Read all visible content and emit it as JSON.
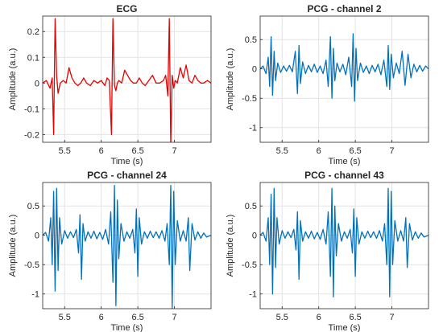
{
  "chart_data": [
    {
      "type": "line",
      "title": "ECG",
      "xlabel": "Time (s)",
      "ylabel": "Amplitude (a.u.)",
      "xlim": [
        5.2,
        7.5
      ],
      "ylim": [
        -0.23,
        0.26
      ],
      "xticks": [
        "5.5",
        "6",
        "6.5",
        "7"
      ],
      "xtick_values": [
        5.5,
        6,
        6.5,
        7
      ],
      "yticks": [
        "-0.2",
        "-0.1",
        "0",
        "0.1",
        "0.2"
      ],
      "ytick_values": [
        -0.2,
        -0.1,
        0,
        0.1,
        0.2
      ],
      "grid": true,
      "color": "#e60000",
      "series": [
        {
          "x": [
            5.2,
            5.25,
            5.3,
            5.33,
            5.35,
            5.37,
            5.39,
            5.41,
            5.44,
            5.48,
            5.52,
            5.56,
            5.6,
            5.64,
            5.68,
            5.72,
            5.76,
            5.8,
            5.85,
            5.9,
            5.95,
            6.0,
            6.05,
            6.08,
            6.11,
            6.14,
            6.16,
            6.18,
            6.2,
            6.22,
            6.24,
            6.28,
            6.32,
            6.36,
            6.4,
            6.44,
            6.48,
            6.52,
            6.56,
            6.6,
            6.65,
            6.7,
            6.75,
            6.8,
            6.85,
            6.88,
            6.91,
            6.93,
            6.95,
            6.97,
            6.99,
            7.01,
            7.04,
            7.08,
            7.12,
            7.16,
            7.2,
            7.24,
            7.28,
            7.32,
            7.36,
            7.4,
            7.45,
            7.5
          ],
          "y": [
            0.0,
            0.01,
            -0.02,
            0.02,
            -0.2,
            0.25,
            0.03,
            -0.04,
            0.0,
            0.01,
            0.0,
            0.06,
            0.02,
            0.0,
            -0.01,
            0.0,
            0.02,
            0.0,
            -0.01,
            0.01,
            0.0,
            0.01,
            -0.01,
            0.02,
            0.01,
            -0.2,
            0.25,
            -0.01,
            -0.03,
            0.0,
            0.01,
            0.0,
            0.05,
            0.03,
            0.01,
            0.0,
            0.0,
            0.02,
            0.0,
            -0.01,
            0.01,
            0.03,
            0.0,
            0.0,
            0.01,
            0.03,
            -0.05,
            0.25,
            -0.24,
            0.03,
            -0.02,
            0.01,
            0.0,
            0.06,
            0.02,
            0.07,
            0.01,
            0.0,
            0.03,
            0.01,
            0.0,
            0.0,
            0.01,
            0.0
          ]
        }
      ]
    },
    {
      "type": "line",
      "title": "PCG - channel 2",
      "xlabel": "Time (s)",
      "ylabel": "Amplitude (a.u.)",
      "xlim": [
        5.2,
        7.5
      ],
      "ylim": [
        -1.25,
        0.9
      ],
      "xticks": [
        "5.5",
        "6",
        "6.5",
        "7"
      ],
      "xtick_values": [
        5.5,
        6,
        6.5,
        7
      ],
      "yticks": [
        "-1",
        "-0.5",
        "0",
        "0.5"
      ],
      "ytick_values": [
        -1,
        -0.5,
        0,
        0.5
      ],
      "grid": true,
      "color": "#0072bd",
      "series": [
        {
          "x": [
            5.2,
            5.24,
            5.28,
            5.31,
            5.33,
            5.35,
            5.37,
            5.39,
            5.41,
            5.44,
            5.48,
            5.52,
            5.56,
            5.6,
            5.64,
            5.68,
            5.71,
            5.73,
            5.75,
            5.78,
            5.82,
            5.86,
            5.9,
            5.94,
            5.98,
            6.02,
            6.06,
            6.1,
            6.13,
            6.16,
            6.18,
            6.2,
            6.22,
            6.25,
            6.29,
            6.33,
            6.37,
            6.41,
            6.45,
            6.47,
            6.49,
            6.51,
            6.53,
            6.57,
            6.61,
            6.65,
            6.69,
            6.73,
            6.77,
            6.81,
            6.85,
            6.89,
            6.93,
            6.95,
            6.97,
            6.99,
            7.02,
            7.06,
            7.1,
            7.14,
            7.18,
            7.22,
            7.26,
            7.3,
            7.34,
            7.38,
            7.42,
            7.46,
            7.5
          ],
          "y": [
            0.0,
            0.05,
            -0.08,
            0.2,
            -0.3,
            0.55,
            -0.45,
            0.3,
            -0.2,
            0.1,
            -0.06,
            0.05,
            -0.04,
            0.06,
            -0.05,
            0.3,
            -0.42,
            0.4,
            -0.25,
            0.12,
            -0.08,
            0.06,
            -0.05,
            0.08,
            -0.06,
            0.05,
            -0.08,
            0.15,
            -0.3,
            0.55,
            -0.5,
            0.35,
            -0.2,
            0.1,
            -0.05,
            0.08,
            -0.1,
            0.2,
            -0.3,
            0.6,
            -0.55,
            0.35,
            -0.2,
            0.1,
            -0.06,
            0.05,
            -0.08,
            0.06,
            -0.05,
            0.08,
            -0.1,
            0.15,
            -0.3,
            0.4,
            -0.35,
            0.25,
            -0.15,
            0.1,
            -0.08,
            0.3,
            -0.28,
            0.25,
            -0.15,
            0.08,
            -0.05,
            0.06,
            -0.04,
            0.05,
            0.0
          ]
        }
      ]
    },
    {
      "type": "line",
      "title": "PCG - channel 24",
      "xlabel": "Time (s)",
      "ylabel": "Amplitude (a.u.)",
      "xlim": [
        5.2,
        7.5
      ],
      "ylim": [
        -1.25,
        0.9
      ],
      "xticks": [
        "5.5",
        "6",
        "6.5",
        "7"
      ],
      "xtick_values": [
        5.5,
        6,
        6.5,
        7
      ],
      "yticks": [
        "-1",
        "-0.5",
        "0",
        "0.5"
      ],
      "ytick_values": [
        -1,
        -0.5,
        0,
        0.5
      ],
      "grid": true,
      "color": "#0072bd",
      "series": [
        {
          "x": [
            5.2,
            5.24,
            5.28,
            5.31,
            5.33,
            5.35,
            5.37,
            5.39,
            5.41,
            5.43,
            5.46,
            5.5,
            5.54,
            5.58,
            5.62,
            5.66,
            5.69,
            5.71,
            5.73,
            5.75,
            5.78,
            5.82,
            5.86,
            5.9,
            5.94,
            5.98,
            6.02,
            6.06,
            6.1,
            6.13,
            6.16,
            6.18,
            6.2,
            6.22,
            6.24,
            6.27,
            6.31,
            6.35,
            6.39,
            6.43,
            6.46,
            6.48,
            6.5,
            6.52,
            6.55,
            6.59,
            6.63,
            6.67,
            6.71,
            6.75,
            6.79,
            6.83,
            6.87,
            6.9,
            6.93,
            6.95,
            6.97,
            6.99,
            7.01,
            7.04,
            7.08,
            7.12,
            7.16,
            7.19,
            7.21,
            7.24,
            7.28,
            7.32,
            7.36,
            7.4,
            7.44,
            7.5
          ],
          "y": [
            0.0,
            0.05,
            -0.1,
            0.3,
            -0.5,
            0.75,
            -0.95,
            0.8,
            -0.6,
            0.3,
            -0.15,
            0.08,
            -0.05,
            0.06,
            -0.04,
            0.1,
            -0.3,
            0.35,
            -0.75,
            0.2,
            -0.1,
            0.06,
            -0.05,
            0.07,
            -0.06,
            0.05,
            -0.07,
            0.1,
            -0.15,
            0.4,
            -0.8,
            0.85,
            -1.2,
            0.6,
            -0.4,
            0.2,
            -0.1,
            0.06,
            -0.05,
            0.1,
            -0.3,
            0.45,
            -0.7,
            0.3,
            -0.15,
            0.06,
            -0.05,
            0.07,
            -0.04,
            0.06,
            -0.05,
            0.08,
            -0.1,
            0.2,
            -0.5,
            0.85,
            -1.25,
            0.75,
            -0.5,
            0.25,
            -0.1,
            0.08,
            -0.1,
            0.3,
            -0.6,
            0.2,
            -0.08,
            0.06,
            -0.05,
            0.04,
            -0.03,
            0.0
          ]
        }
      ]
    },
    {
      "type": "line",
      "title": "PCG - channel 43",
      "xlabel": "Time (s)",
      "ylabel": "Amplitude (a.u.)",
      "xlim": [
        5.2,
        7.5
      ],
      "ylim": [
        -1.25,
        0.9
      ],
      "xticks": [
        "5.5",
        "6",
        "6.5",
        "7"
      ],
      "xtick_values": [
        5.5,
        6,
        6.5,
        7
      ],
      "yticks": [
        "-1",
        "-0.5",
        "0",
        "0.5"
      ],
      "ytick_values": [
        -1,
        -0.5,
        0,
        0.5
      ],
      "grid": true,
      "color": "#0072bd",
      "series": [
        {
          "x": [
            5.2,
            5.24,
            5.28,
            5.31,
            5.33,
            5.35,
            5.37,
            5.39,
            5.41,
            5.43,
            5.46,
            5.5,
            5.54,
            5.58,
            5.62,
            5.66,
            5.69,
            5.71,
            5.73,
            5.75,
            5.78,
            5.82,
            5.86,
            5.9,
            5.94,
            5.98,
            6.02,
            6.06,
            6.1,
            6.13,
            6.16,
            6.18,
            6.2,
            6.22,
            6.24,
            6.27,
            6.31,
            6.35,
            6.39,
            6.43,
            6.46,
            6.48,
            6.5,
            6.52,
            6.55,
            6.59,
            6.63,
            6.67,
            6.71,
            6.75,
            6.79,
            6.83,
            6.87,
            6.9,
            6.93,
            6.95,
            6.97,
            6.99,
            7.01,
            7.04,
            7.08,
            7.12,
            7.16,
            7.19,
            7.21,
            7.24,
            7.28,
            7.32,
            7.36,
            7.4,
            7.44,
            7.5
          ],
          "y": [
            0.0,
            0.05,
            -0.1,
            0.3,
            -0.5,
            0.7,
            -1.0,
            0.8,
            -0.55,
            0.3,
            -0.15,
            0.08,
            -0.05,
            0.06,
            -0.04,
            0.1,
            -0.25,
            0.4,
            -0.75,
            0.25,
            -0.1,
            0.06,
            -0.05,
            0.07,
            -0.06,
            0.05,
            -0.07,
            0.1,
            -0.15,
            0.4,
            -0.7,
            0.8,
            -1.05,
            0.5,
            -0.35,
            0.2,
            -0.1,
            0.06,
            -0.05,
            0.1,
            -0.3,
            0.45,
            -0.7,
            0.3,
            -0.15,
            0.06,
            -0.05,
            0.07,
            -0.04,
            0.06,
            -0.05,
            0.08,
            -0.1,
            0.2,
            -0.5,
            0.8,
            -1.05,
            0.75,
            -0.5,
            0.25,
            -0.1,
            0.08,
            -0.1,
            0.3,
            -0.55,
            0.2,
            -0.08,
            0.06,
            -0.05,
            0.04,
            -0.03,
            0.0
          ]
        }
      ]
    }
  ]
}
